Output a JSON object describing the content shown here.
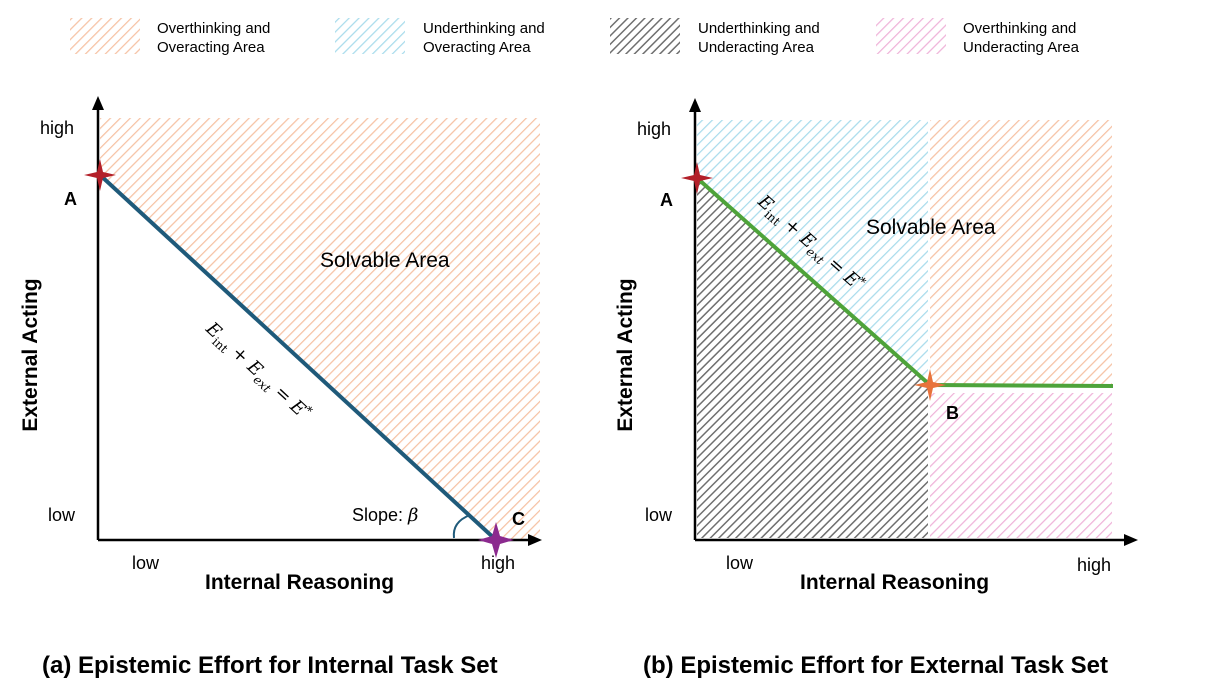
{
  "legend": [
    {
      "line1": "Overthinking and",
      "line2": "Overacting Area",
      "pattern": "orange"
    },
    {
      "line1": "Underthinking and",
      "line2": "Overacting Area",
      "pattern": "blue"
    },
    {
      "line1": "Underthinking and",
      "line2": "Underacting Area",
      "pattern": "gray"
    },
    {
      "line1": "Overthinking and",
      "line2": "Underacting Area",
      "pattern": "pink"
    }
  ],
  "colors": {
    "orange": "#f6c2a4",
    "blue": "#a9dcec",
    "gray": "#6f6f6f",
    "pink": "#efb3d9",
    "line_a": "#1f5a7a",
    "line_b": "#4ea33a",
    "star_red": "#b3202a",
    "star_orange": "#e8733c",
    "star_purple": "#8b2a8e"
  },
  "panel_a": {
    "ylabel": "External Acting",
    "xlabel": "Internal Reasoning",
    "y_high": "high",
    "y_low": "low",
    "x_low": "low",
    "x_high": "high",
    "area_label": "Solvable Area",
    "equation": "E_int + E_ext = E*",
    "eq_main1": "E",
    "eq_sub1": "int",
    "eq_plus": " + ",
    "eq_main2": "E",
    "eq_sub2": "ext",
    "eq_equals": " = ",
    "eq_main3": "E",
    "eq_sup3": "*",
    "slope_text": "Slope: ",
    "slope_symbol": "β",
    "point_a": "A",
    "point_c": "C",
    "caption": "(a) Epistemic Effort for Internal Task Set"
  },
  "panel_b": {
    "ylabel": "External Acting",
    "xlabel": "Internal Reasoning",
    "y_high": "high",
    "y_low": "low",
    "x_low": "low",
    "x_high": "high",
    "area_label": "Solvable Area",
    "equation": "E_int + E_ext = E*",
    "eq_main1": "E",
    "eq_sub1": "int",
    "eq_plus": " + ",
    "eq_main2": "E",
    "eq_sub2": "ext",
    "eq_equals": " = ",
    "eq_main3": "E",
    "eq_sup3": "*",
    "point_a": "A",
    "point_b": "B",
    "caption": "(b) Epistemic Effort for External Task Set"
  }
}
